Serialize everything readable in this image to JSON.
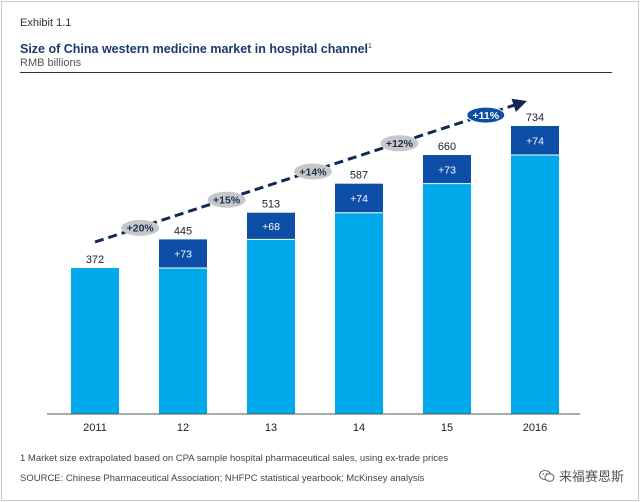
{
  "header": {
    "exhibit": "Exhibit 1.1",
    "title": "Size of China western medicine market in hospital channel",
    "title_note": "1",
    "subtitle": "RMB billions"
  },
  "chart_data": {
    "type": "bar",
    "stacked": true,
    "categories": [
      "2011",
      "12",
      "13",
      "14",
      "15",
      "2016"
    ],
    "totals": [
      372,
      445,
      513,
      587,
      660,
      734
    ],
    "increments": [
      null,
      "+73",
      "+68",
      "+74",
      "+73",
      "+74"
    ],
    "growth_labels": [
      "+20%",
      "+15%",
      "+14%",
      "+12%",
      "+11%"
    ],
    "series": [
      {
        "values": [
          372,
          372,
          445,
          513,
          587,
          660
        ]
      },
      {
        "values": [
          0,
          73,
          68,
          74,
          73,
          74
        ]
      }
    ],
    "ylim": [
      0,
      780
    ],
    "colors": {
      "base": "#00a9e9",
      "increment": "#0d4ea6",
      "arrow": "#102a55",
      "pill": "#c7c7c7",
      "pill_last": "#0d4ea6"
    },
    "grid": false
  },
  "footer": {
    "footnote": "1 Market size extrapolated based on CPA sample hospital pharmaceutical sales, using ex-trade prices",
    "source": "SOURCE: Chinese Pharmaceutical Association; NHFPC statistical yearbook; McKinsey analysis",
    "brand": "来福赛恩斯",
    "brand_icon": "wechat-icon"
  }
}
